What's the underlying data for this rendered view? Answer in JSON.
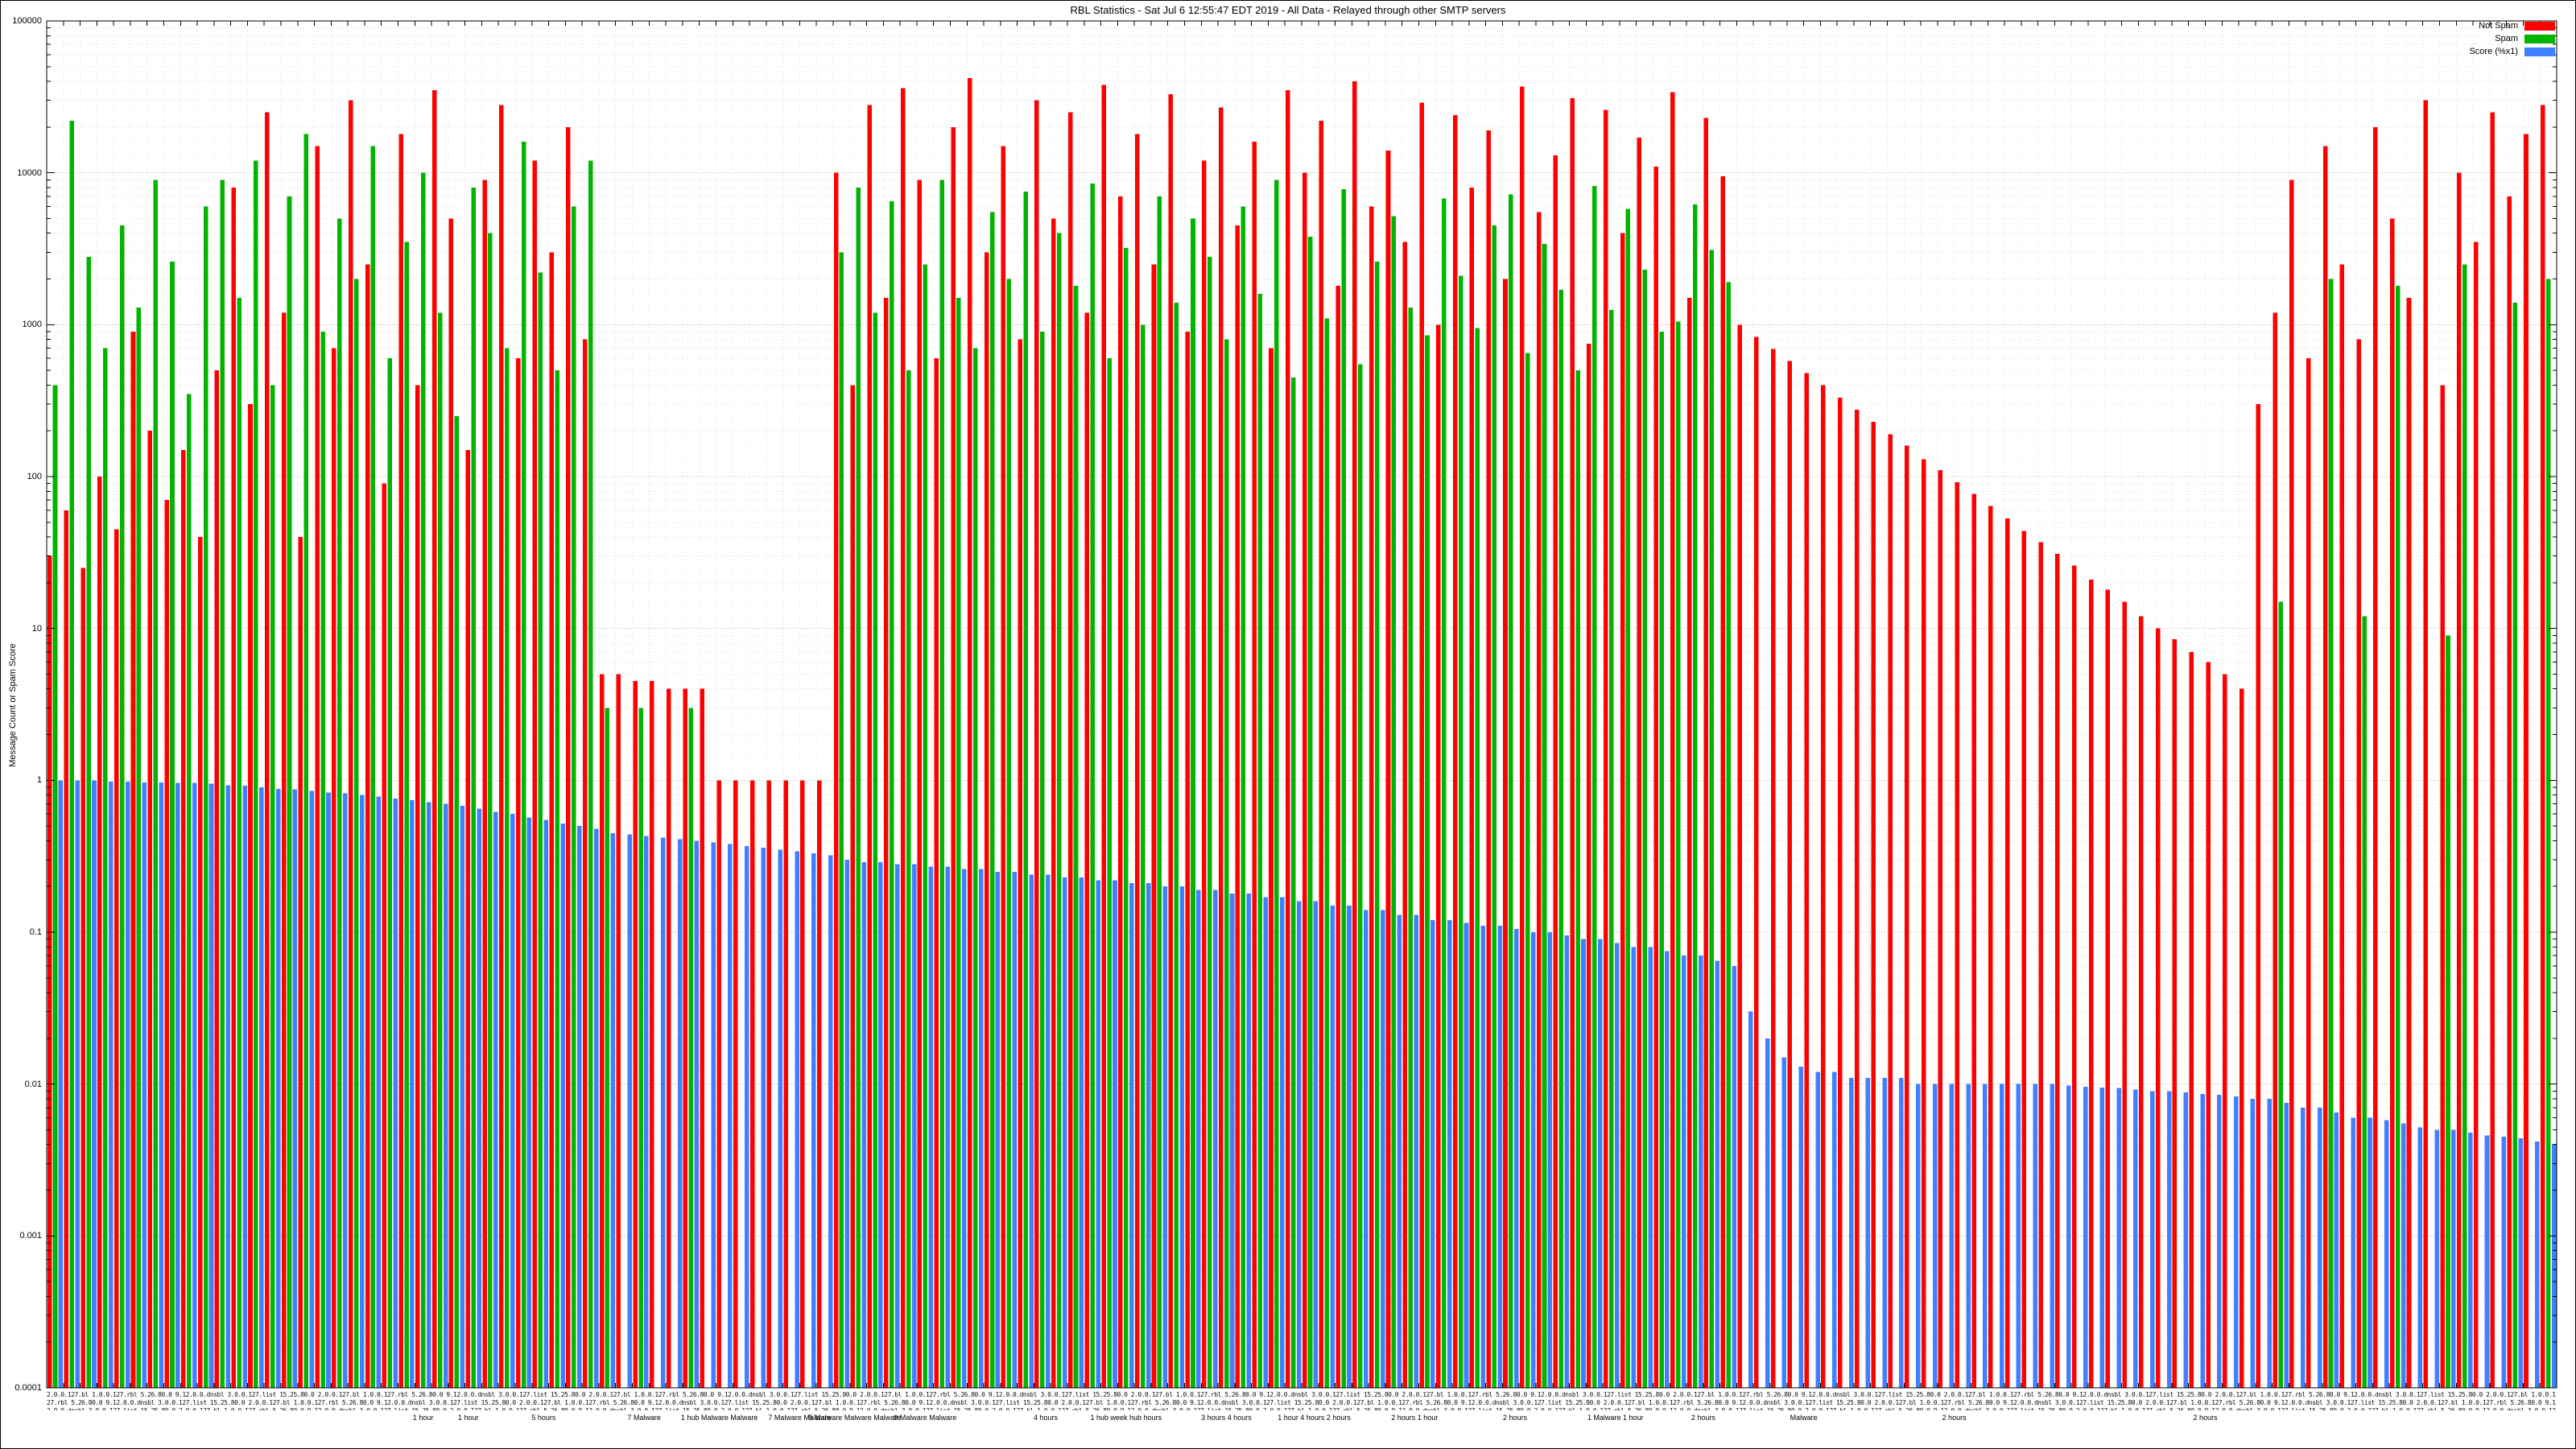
{
  "title": "RBL Statistics - Sat Jul 6 12:55:47 EDT 2019 - All Data - Relayed through other SMTP servers",
  "ylabel": "Message Count or Spam Score",
  "legend": {
    "items": [
      {
        "label": "Not Spam",
        "color": "#ff0000"
      },
      {
        "label": "Spam",
        "color": "#00b400"
      },
      {
        "label": "Score (%x1)",
        "color": "#4080ff"
      }
    ]
  },
  "chart_data": {
    "type": "bar",
    "title": "RBL Statistics - Sat Jul 6 12:55:47 EDT 2019 - All Data - Relayed through other SMTP servers",
    "xlabel": "",
    "ylabel": "Message Count or Spam Score",
    "yscale": "log",
    "ylim": [
      0.0001,
      100000
    ],
    "ytick_labels": [
      "100000",
      "10000",
      "1000",
      "100",
      "10",
      "1",
      "0.1",
      "0.01",
      "0.001",
      "0.0001"
    ],
    "grid": true,
    "legend_position": "top-right",
    "n_categories": 150,
    "x_ticks": "dense illegible per-source RBL tick labels",
    "xtick_texture": "2.0.0.127.bl 1.0.0.127.rbl 5.26.80.0 9.12.0.0.dnsbl 3.0.0.127.list 15.25.80.0 ",
    "series": [
      {
        "name": "Not Spam",
        "color": "#ff0000",
        "values": [
          30,
          60,
          25,
          100,
          45,
          900,
          200,
          70,
          150,
          40,
          500,
          8000,
          300,
          25000,
          1200,
          40,
          15000,
          700,
          30000,
          2500,
          90,
          18000,
          400,
          35000,
          5000,
          150,
          9000,
          28000,
          600,
          12000,
          3000,
          20000,
          800,
          5,
          5,
          4.5,
          4.5,
          4,
          4,
          4,
          1,
          1,
          1,
          1,
          1,
          1,
          1,
          10000,
          400,
          28000,
          1500,
          36000,
          9000,
          600,
          20000,
          42000,
          3000,
          15000,
          800,
          30000,
          5000,
          25000,
          1200,
          38000,
          7000,
          18000,
          2500,
          33000,
          900,
          12000,
          27000,
          4500,
          16000,
          700,
          35000,
          10000,
          22000,
          1800,
          40000,
          6000,
          14000,
          3500,
          29000,
          1000,
          24000,
          8000,
          19000,
          2000,
          37000,
          5500,
          13000,
          31000,
          750,
          26000,
          4000,
          17000,
          11000,
          34000,
          1500,
          23000,
          9500,
          1000,
          830,
          690,
          575,
          480,
          400,
          330,
          275,
          230,
          190,
          160,
          130,
          110,
          92,
          77,
          64,
          53,
          44,
          37,
          31,
          26,
          21,
          18,
          15,
          12,
          10,
          8.5,
          7,
          6,
          5,
          4,
          300,
          1200,
          9000,
          600,
          15000,
          2500,
          800,
          20000,
          5000,
          1500,
          30000,
          400,
          10000,
          3500,
          25000,
          7000,
          18000,
          28000
        ]
      },
      {
        "name": "Spam",
        "color": "#00b400",
        "values": [
          400,
          22000,
          2800,
          700,
          4500,
          1300,
          9000,
          2600,
          350,
          6000,
          9000,
          1500,
          12000,
          400,
          7000,
          18000,
          900,
          5000,
          2000,
          15000,
          600,
          3500,
          10000,
          1200,
          250,
          8000,
          4000,
          700,
          16000,
          2200,
          500,
          6000,
          12000,
          3,
          0,
          3,
          0,
          0,
          3,
          0,
          0,
          0,
          0,
          0,
          0,
          0,
          0,
          3000,
          8000,
          1200,
          6500,
          500,
          2500,
          9000,
          1500,
          700,
          5500,
          2000,
          7500,
          900,
          4000,
          1800,
          8500,
          600,
          3200,
          1000,
          7000,
          1400,
          5000,
          2800,
          800,
          6000,
          1600,
          9000,
          450,
          3800,
          1100,
          7800,
          550,
          2600,
          5200,
          1300,
          850,
          6800,
          2100,
          950,
          4500,
          7200,
          650,
          3400,
          1700,
          500,
          8200,
          1250,
          5800,
          2300,
          900,
          1050,
          6200,
          3100,
          1900,
          0,
          0,
          0,
          0,
          0,
          0,
          0,
          0,
          0,
          0,
          0,
          0,
          0,
          0,
          0,
          0,
          0,
          0,
          0,
          0,
          0,
          0,
          0,
          0,
          0,
          0,
          0,
          0,
          0,
          0,
          0,
          0,
          15,
          0,
          0,
          2000,
          0,
          12,
          0,
          1800,
          0,
          0,
          9,
          2500,
          0,
          0,
          1400,
          0,
          2000
        ]
      },
      {
        "name": "Score (%x1)",
        "color": "#4080ff",
        "values": [
          1.0,
          1.0,
          1.0,
          0.98,
          0.98,
          0.97,
          0.97,
          0.96,
          0.96,
          0.95,
          0.93,
          0.92,
          0.9,
          0.88,
          0.87,
          0.85,
          0.83,
          0.82,
          0.8,
          0.78,
          0.76,
          0.74,
          0.72,
          0.7,
          0.68,
          0.65,
          0.62,
          0.6,
          0.57,
          0.55,
          0.52,
          0.5,
          0.48,
          0.45,
          0.44,
          0.43,
          0.42,
          0.41,
          0.4,
          0.39,
          0.38,
          0.37,
          0.36,
          0.35,
          0.34,
          0.33,
          0.32,
          0.3,
          0.29,
          0.29,
          0.28,
          0.28,
          0.27,
          0.27,
          0.26,
          0.26,
          0.25,
          0.25,
          0.24,
          0.24,
          0.23,
          0.23,
          0.22,
          0.22,
          0.21,
          0.21,
          0.2,
          0.2,
          0.19,
          0.19,
          0.18,
          0.18,
          0.17,
          0.17,
          0.16,
          0.16,
          0.15,
          0.15,
          0.14,
          0.14,
          0.13,
          0.13,
          0.12,
          0.12,
          0.115,
          0.11,
          0.11,
          0.105,
          0.1,
          0.1,
          0.095,
          0.09,
          0.09,
          0.085,
          0.08,
          0.08,
          0.075,
          0.07,
          0.07,
          0.065,
          0.06,
          0.03,
          0.02,
          0.015,
          0.013,
          0.012,
          0.012,
          0.011,
          0.011,
          0.011,
          0.011,
          0.01,
          0.01,
          0.01,
          0.01,
          0.01,
          0.01,
          0.01,
          0.01,
          0.01,
          0.0098,
          0.0096,
          0.0095,
          0.0094,
          0.0092,
          0.009,
          0.009,
          0.0088,
          0.0086,
          0.0085,
          0.0083,
          0.008,
          0.008,
          0.0075,
          0.007,
          0.007,
          0.0065,
          0.006,
          0.006,
          0.0058,
          0.0055,
          0.0052,
          0.005,
          0.005,
          0.0048,
          0.0046,
          0.0045,
          0.0044,
          0.0042,
          0.004
        ]
      }
    ],
    "footer_labels": [
      {
        "x": 0.15,
        "text": "1 hour"
      },
      {
        "x": 0.168,
        "text": "1 hour"
      },
      {
        "x": 0.198,
        "text": "5 hours"
      },
      {
        "x": 0.238,
        "text": "7 Malware"
      },
      {
        "x": 0.268,
        "text": "1 hub Malware Malware"
      },
      {
        "x": 0.3,
        "text": "7 Malware Malware"
      },
      {
        "x": 0.322,
        "text": "5 Malware Malware Malware"
      },
      {
        "x": 0.35,
        "text": "9 Malware Malware"
      },
      {
        "x": 0.398,
        "text": "4 hours"
      },
      {
        "x": 0.43,
        "text": "1 hub week hub hours"
      },
      {
        "x": 0.47,
        "text": "3 hours 4 hours"
      },
      {
        "x": 0.505,
        "text": "1 hour 4 hours 2 hours"
      },
      {
        "x": 0.545,
        "text": "2 hours 1 hour"
      },
      {
        "x": 0.585,
        "text": "2 hours"
      },
      {
        "x": 0.625,
        "text": "1 Malware 1 hour"
      },
      {
        "x": 0.66,
        "text": "2 hours"
      },
      {
        "x": 0.7,
        "text": "Malware"
      },
      {
        "x": 0.76,
        "text": "2 hours"
      },
      {
        "x": 0.86,
        "text": "2 hours"
      }
    ]
  }
}
